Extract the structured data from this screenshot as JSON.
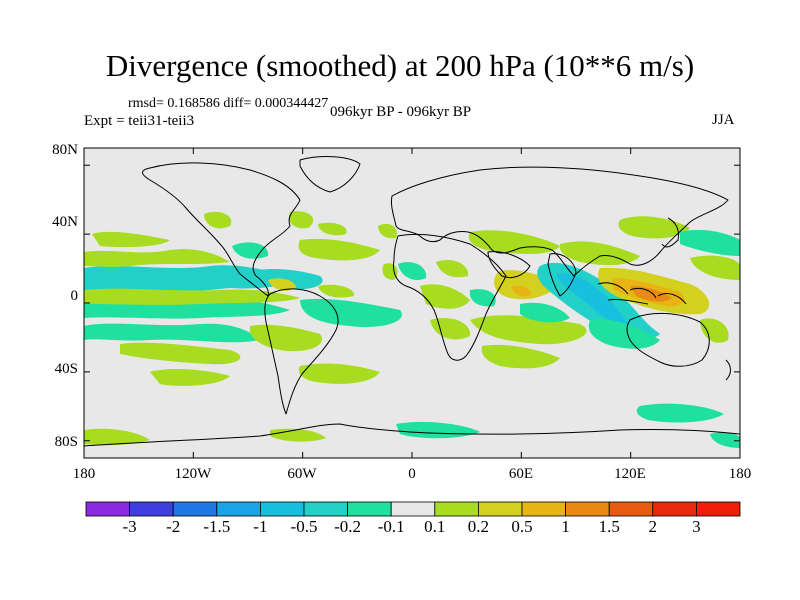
{
  "title": "Divergence (smoothed) at 200 hPa (10**6 m/s)",
  "stats": "rmsd= 0.168586 diff= 0.000344427",
  "experiment": "Expt = teii31-teii3",
  "period": "096kyr BP - 096kyr BP",
  "season": "JJA",
  "lat_ticks": [
    "80N",
    "40N",
    "0",
    "40S",
    "80S"
  ],
  "lon_ticks": [
    "180",
    "120W",
    "60W",
    "0",
    "60E",
    "120E",
    "180"
  ],
  "colorbar": {
    "labels": [
      "-3",
      "-2",
      "-1.5",
      "-1",
      "-0.5",
      "-0.2",
      "-0.1",
      "0.1",
      "0.2",
      "0.5",
      "1",
      "1.5",
      "2",
      "3"
    ],
    "colors": [
      "#8a2be2",
      "#3f3fe0",
      "#1f78e6",
      "#1aa6e6",
      "#18c0e0",
      "#22d0c8",
      "#20e0a0",
      "#e8e8e8",
      "#a8dc20",
      "#d4d020",
      "#e8b414",
      "#e88a14",
      "#e85a10",
      "#e82a0c",
      "#f01e0a"
    ]
  },
  "colors": {
    "land_background": "#e8e8e8",
    "coast": "#000000"
  }
}
